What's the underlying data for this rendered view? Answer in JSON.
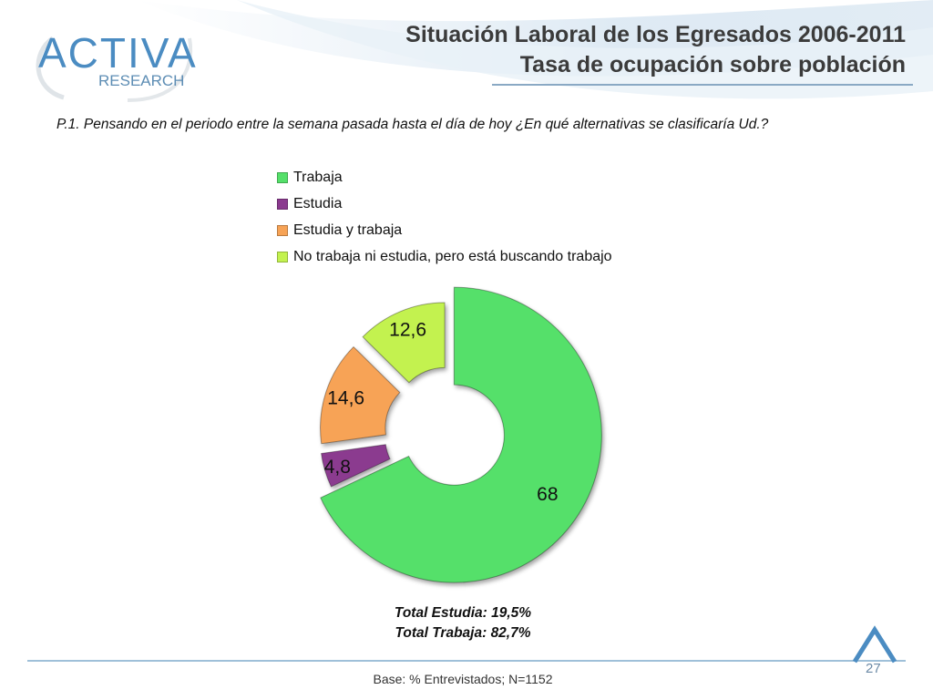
{
  "brand": {
    "logo_text": "ACTIVA",
    "logo_subtext": "RESEARCH",
    "accent_color": "#4f8fc0"
  },
  "header": {
    "title_line1": "Situación Laboral de los Egresados 2006-2011",
    "title_line2": "Tasa de ocupación sobre población"
  },
  "question": "P.1.  Pensando en el periodo entre la semana pasada hasta el día de hoy ¿En qué alternativas se clasificaría Ud.?",
  "chart_data": {
    "type": "pie",
    "donut": true,
    "exploded": true,
    "legend_position": "top",
    "categories": [
      "Trabaja",
      "Estudia",
      "Estudia y trabaja",
      "No trabaja ni estudia, pero está buscando trabajo"
    ],
    "values": [
      68,
      4.8,
      14.6,
      12.6
    ],
    "data_labels": [
      "68",
      "4,8",
      "14,6",
      "12,6"
    ],
    "colors": [
      "#55e06a",
      "#8b3a8f",
      "#f7a356",
      "#c3f24f"
    ]
  },
  "totals": {
    "line1": "Total Estudia: 19,5%",
    "line2": "Total Trabaja: 82,7%"
  },
  "footer": {
    "base": "Base: % Entrevistados; N=1152",
    "page_number": "27"
  }
}
